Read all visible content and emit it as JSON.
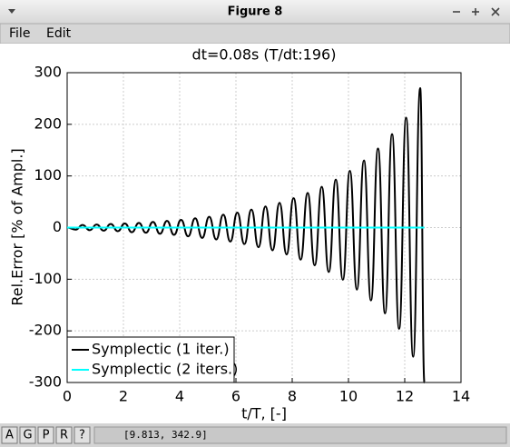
{
  "window": {
    "title": "Figure 8",
    "menu": [
      "File",
      "Edit"
    ],
    "toolbar_buttons": [
      "A",
      "G",
      "P",
      "R",
      "?"
    ],
    "status": "[9.813, 342.9]"
  },
  "chart_data": {
    "type": "line",
    "title": "dt=0.08s (T/dt:196)",
    "x_label": "t/T, [-]",
    "y_label": "Rel.Error [% of Ampl.]",
    "xlim": [
      0,
      14
    ],
    "xticks": [
      0,
      2,
      4,
      6,
      8,
      10,
      12,
      14
    ],
    "ylim": [
      -300,
      300
    ],
    "yticks": [
      -300,
      -200,
      -100,
      0,
      100,
      200,
      300
    ],
    "grid": true,
    "legend": "lower left",
    "series": [
      {
        "name": "Symplectic (1 iter.)",
        "color": "#000000",
        "x": [
          0,
          0.3,
          0.55,
          0.8,
          1.05,
          1.3,
          1.55,
          1.8,
          2.05,
          2.3,
          2.55,
          2.8,
          3.05,
          3.3,
          3.55,
          3.8,
          4.05,
          4.3,
          4.55,
          4.8,
          5.05,
          5.3,
          5.55,
          5.8,
          6.05,
          6.3,
          6.55,
          6.8,
          7.05,
          7.3,
          7.55,
          7.8,
          8.05,
          8.3,
          8.55,
          8.8,
          9.05,
          9.3,
          9.55,
          9.8,
          10.05,
          10.3,
          10.55,
          10.8,
          11.05,
          11.3,
          11.55,
          11.8,
          12.05,
          12.3,
          12.55,
          12.7
        ],
        "values": [
          0,
          -4,
          5,
          -5,
          6,
          -6,
          7,
          -7,
          8,
          -9,
          9,
          -10,
          11,
          -12,
          13,
          -14,
          15,
          -17,
          18,
          -20,
          21,
          -23,
          25,
          -27,
          29,
          -32,
          35,
          -38,
          41,
          -44,
          48,
          -52,
          57,
          -62,
          67,
          -73,
          79,
          -86,
          93,
          -101,
          110,
          -120,
          130,
          -141,
          153,
          -166,
          181,
          -196,
          213,
          -250,
          270,
          -300
        ]
      },
      {
        "name": "Symplectic (2 iters.)",
        "color": "#00ffff",
        "x": [
          0,
          12.7
        ],
        "values": [
          0,
          0
        ]
      }
    ]
  }
}
